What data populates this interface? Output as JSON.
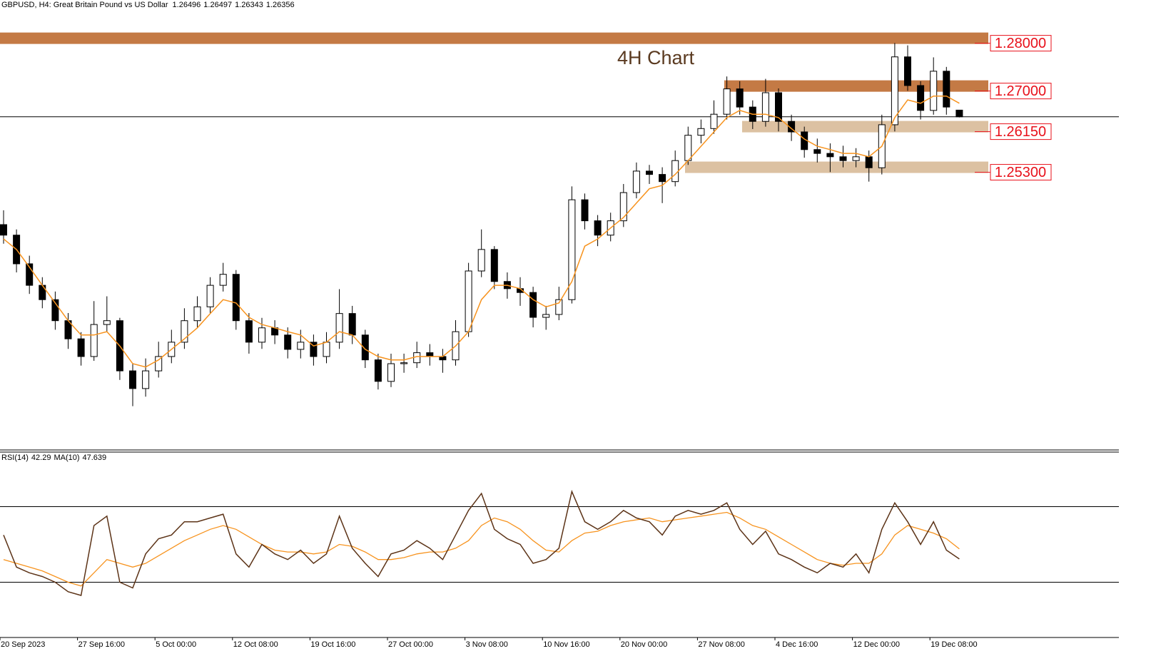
{
  "chart_data": {
    "type": "candlestick",
    "title": "GBPUSD, H4:  Great Britain Pound vs US Dollar",
    "annotation": "4H Chart",
    "categories": [
      "20 Sep 2023",
      null,
      null,
      null,
      null,
      null,
      "27 Sep 16:00",
      null,
      null,
      null,
      null,
      null,
      "5 Oct 00:00",
      null,
      null,
      null,
      null,
      null,
      "12 Oct 08:00",
      null,
      null,
      null,
      null,
      null,
      "19 Oct 16:00",
      null,
      null,
      null,
      null,
      null,
      "27 Oct 00:00",
      null,
      null,
      null,
      null,
      null,
      "3 Nov 08:00",
      null,
      null,
      null,
      null,
      null,
      "10 Nov 16:00",
      null,
      null,
      null,
      null,
      null,
      "20 Nov 00:00",
      null,
      null,
      null,
      null,
      null,
      "27 Nov 08:00",
      null,
      null,
      null,
      null,
      null,
      "4 Dec 16:00",
      null,
      null,
      null,
      null,
      null,
      "12 Dec 00:00",
      null,
      null,
      null,
      null,
      null,
      "19 Dec 08:00",
      null,
      null
    ],
    "open": [
      1.241,
      1.2388,
      1.2328,
      1.2283,
      1.2253,
      1.2209,
      1.2171,
      1.2134,
      1.2201,
      1.2209,
      1.2104,
      1.2067,
      1.2104,
      1.2134,
      1.2164,
      1.2209,
      1.2238,
      1.2283,
      1.2306,
      1.2209,
      1.2164,
      1.2194,
      1.2179,
      1.2149,
      1.2164,
      1.2134,
      1.2164,
      1.2224,
      1.2179,
      1.2127,
      1.2082,
      1.2119,
      1.2121,
      1.2142,
      1.2134,
      1.2127,
      1.2186,
      1.2313,
      1.2358,
      1.2291,
      1.2276,
      1.2268,
      1.2216,
      1.2222,
      1.2253,
      1.2462,
      1.2418,
      1.2388,
      1.2418,
      1.2477,
      1.2522,
      1.2515,
      1.25,
      1.2544,
      1.2597,
      1.2611,
      1.2641,
      1.2694,
      1.2656,
      1.2626,
      1.2686,
      1.2626,
      1.2604,
      1.2567,
      1.2559,
      1.2552,
      1.2544,
      1.2552,
      1.2529,
      1.2619,
      1.2761,
      1.2701,
      1.2649,
      1.2731,
      1.26496
    ],
    "high": [
      1.244,
      1.24,
      1.2345,
      1.23,
      1.227,
      1.2225,
      1.2185,
      1.225,
      1.226,
      1.2215,
      1.212,
      1.213,
      1.2165,
      1.219,
      1.2235,
      1.226,
      1.23,
      1.233,
      1.2315,
      1.2225,
      1.2215,
      1.221,
      1.2195,
      1.219,
      1.218,
      1.2185,
      1.2275,
      1.224,
      1.219,
      1.214,
      1.214,
      1.214,
      1.2165,
      1.216,
      1.215,
      1.221,
      1.233,
      1.24,
      1.2365,
      1.231,
      1.23,
      1.228,
      1.224,
      1.228,
      1.249,
      1.2475,
      1.243,
      1.2435,
      1.2495,
      1.254,
      1.2535,
      1.253,
      1.2565,
      1.2615,
      1.263,
      1.267,
      1.272,
      1.271,
      1.267,
      1.2715,
      1.2695,
      1.264,
      1.2615,
      1.259,
      1.258,
      1.2575,
      1.257,
      1.2565,
      1.264,
      1.279,
      1.2785,
      1.271,
      1.276,
      1.274,
      1.26497
    ],
    "low": [
      1.237,
      1.231,
      1.2265,
      1.2235,
      1.219,
      1.215,
      1.2115,
      1.2125,
      1.2185,
      1.2085,
      1.203,
      1.205,
      1.209,
      1.212,
      1.215,
      1.2195,
      1.2225,
      1.227,
      1.219,
      1.214,
      1.215,
      1.216,
      1.213,
      1.213,
      1.2115,
      1.212,
      1.215,
      1.216,
      1.211,
      1.2065,
      1.207,
      1.21,
      1.211,
      1.2115,
      1.21,
      1.2115,
      1.2175,
      1.23,
      1.2275,
      1.2255,
      1.224,
      1.2195,
      1.219,
      1.221,
      1.2245,
      1.24,
      1.2365,
      1.2375,
      1.2405,
      1.2465,
      1.2495,
      1.2455,
      1.249,
      1.2535,
      1.258,
      1.26,
      1.263,
      1.264,
      1.261,
      1.2615,
      1.2605,
      1.2585,
      1.255,
      1.254,
      1.252,
      1.253,
      1.253,
      1.25,
      1.2515,
      1.2605,
      1.269,
      1.263,
      1.264,
      1.264,
      1.26343
    ],
    "close": [
      1.2388,
      1.2328,
      1.2283,
      1.2253,
      1.2209,
      1.2171,
      1.2134,
      1.2201,
      1.2209,
      1.2104,
      1.2067,
      1.2104,
      1.2134,
      1.2164,
      1.2209,
      1.2238,
      1.2283,
      1.2306,
      1.2209,
      1.2164,
      1.2194,
      1.2179,
      1.2149,
      1.2164,
      1.2134,
      1.2164,
      1.2224,
      1.2179,
      1.2127,
      1.2082,
      1.2119,
      1.2121,
      1.2142,
      1.2134,
      1.2127,
      1.2186,
      1.2313,
      1.2358,
      1.2291,
      1.2276,
      1.2268,
      1.2216,
      1.2222,
      1.2253,
      1.2462,
      1.2418,
      1.2388,
      1.2418,
      1.2477,
      1.2522,
      1.2515,
      1.25,
      1.2544,
      1.2597,
      1.2611,
      1.2641,
      1.2694,
      1.2656,
      1.2626,
      1.2686,
      1.2626,
      1.2604,
      1.2567,
      1.2559,
      1.2552,
      1.2544,
      1.2552,
      1.2529,
      1.2619,
      1.2761,
      1.2701,
      1.2649,
      1.2731,
      1.2656,
      1.26356
    ],
    "color_up": "#ffffff",
    "color_down": "#000000",
    "ylim": [
      1.194,
      1.288
    ],
    "ma": {
      "color": "#f7931e",
      "values": [
        1.238,
        1.2358,
        1.2321,
        1.2283,
        1.2246,
        1.2209,
        1.2179,
        1.2179,
        1.2186,
        1.2156,
        1.2119,
        1.2112,
        1.2127,
        1.2149,
        1.2171,
        1.2194,
        1.2224,
        1.2253,
        1.2246,
        1.2216,
        1.2201,
        1.2194,
        1.2186,
        1.2179,
        1.2156,
        1.2164,
        1.2186,
        1.2179,
        1.2149,
        1.2134,
        1.2127,
        1.2127,
        1.2134,
        1.2134,
        1.2134,
        1.2156,
        1.2186,
        1.2253,
        1.2283,
        1.2283,
        1.2276,
        1.2253,
        1.2238,
        1.2246,
        1.2291,
        1.2365,
        1.238,
        1.2403,
        1.2425,
        1.2455,
        1.2485,
        1.2492,
        1.2515,
        1.2544,
        1.2574,
        1.2604,
        1.2634,
        1.2649,
        1.2641,
        1.2641,
        1.2634,
        1.2611,
        1.2589,
        1.2574,
        1.2567,
        1.2559,
        1.2559,
        1.2552,
        1.2574,
        1.2634,
        1.2671,
        1.2664,
        1.2679,
        1.2679,
        1.2664
      ]
    },
    "levels": [
      {
        "value": 1.28,
        "label": "1.28000",
        "color": "#c47a45"
      },
      {
        "value": 1.27,
        "label": "1.27000",
        "color": "#c47a45"
      },
      {
        "value": 1.2615,
        "label": "1.26150",
        "color": "#dcc1a2"
      },
      {
        "value": 1.253,
        "label": "1.25300",
        "color": "#dcc1a2"
      }
    ],
    "label_color": "#e8101a",
    "indicator": {
      "type": "line",
      "name": "RSI(14)",
      "color": "#5c3317",
      "values": [
        55,
        38,
        35,
        33,
        30,
        25,
        23,
        60,
        65,
        30,
        27,
        45,
        53,
        55,
        62,
        62,
        64,
        66,
        45,
        38,
        50,
        45,
        42,
        47,
        40,
        45,
        65,
        48,
        40,
        33,
        45,
        47,
        52,
        48,
        42,
        55,
        68,
        77,
        58,
        53,
        50,
        40,
        42,
        48,
        78,
        62,
        58,
        62,
        68,
        64,
        62,
        55,
        65,
        68,
        66,
        68,
        72,
        58,
        50,
        57,
        45,
        42,
        38,
        35,
        40,
        38,
        45,
        35,
        58,
        72,
        62,
        50,
        62,
        47,
        42.29
      ],
      "ma": {
        "name": "MA(10)",
        "color": "#f7931e",
        "values": [
          42,
          40,
          38,
          36,
          33,
          30,
          28,
          35,
          42,
          40,
          38,
          40,
          44,
          48,
          52,
          55,
          58,
          60,
          58,
          54,
          50,
          47,
          46,
          46,
          45,
          46,
          50,
          49,
          46,
          42,
          42,
          43,
          45,
          46,
          46,
          48,
          52,
          60,
          64,
          62,
          58,
          52,
          47,
          46,
          52,
          56,
          57,
          60,
          62,
          63,
          64,
          62,
          63,
          64,
          65,
          66,
          67,
          64,
          60,
          58,
          54,
          50,
          46,
          42,
          40,
          39,
          40,
          40,
          45,
          55,
          60,
          58,
          56,
          53,
          47.639
        ]
      },
      "ylim": [
        0,
        100
      ],
      "levels": [
        30,
        70
      ]
    }
  }
}
